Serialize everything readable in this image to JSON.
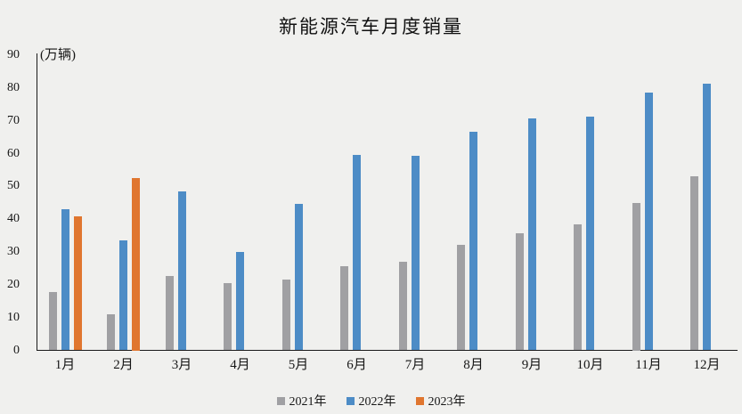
{
  "page": {
    "background_color": "#f0f0ee",
    "axis_color": "#1a1a1a",
    "text_color": "#161616"
  },
  "chart_data": {
    "type": "bar",
    "title": "新能源汽车月度销量",
    "ylabel": "(万辆)",
    "xlabel": "",
    "categories": [
      "1月",
      "2月",
      "3月",
      "4月",
      "5月",
      "6月",
      "7月",
      "8月",
      "9月",
      "10月",
      "11月",
      "12月"
    ],
    "series": [
      {
        "name": "2021年",
        "color": "#a0a0a3",
        "values": [
          17.9,
          11.0,
          22.6,
          20.6,
          21.7,
          25.6,
          27.1,
          32.1,
          35.7,
          38.3,
          45.0,
          53.1
        ]
      },
      {
        "name": "2022年",
        "color": "#4d8cc6",
        "values": [
          43.1,
          33.4,
          48.4,
          29.9,
          44.7,
          59.6,
          59.3,
          66.6,
          70.8,
          71.4,
          78.6,
          81.4
        ]
      },
      {
        "name": "2023年",
        "color": "#e0762f",
        "values": [
          40.8,
          52.5,
          null,
          null,
          null,
          null,
          null,
          null,
          null,
          null,
          null,
          null
        ]
      }
    ],
    "ylim": [
      0,
      90
    ],
    "yticks": [
      0,
      10,
      20,
      30,
      40,
      50,
      60,
      70,
      80,
      90
    ],
    "grid": false,
    "legend_position": "bottom"
  }
}
